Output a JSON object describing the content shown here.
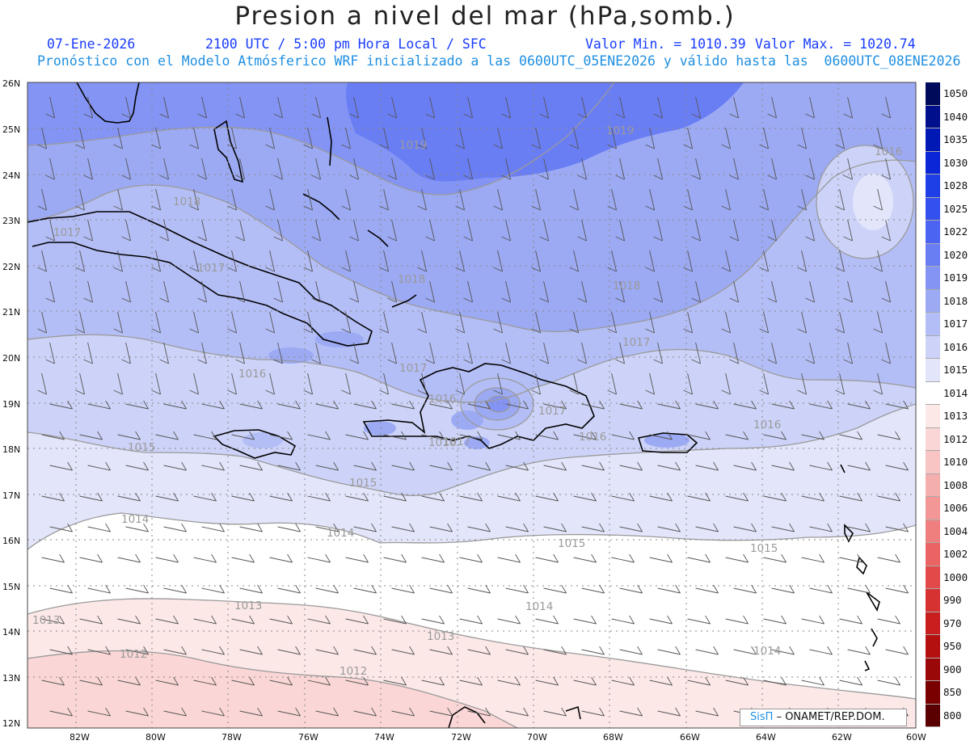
{
  "header": {
    "title": "Presion a nivel del mar (hPa,somb.)",
    "date": "07-Ene-2026",
    "time": "2100 UTC / 5:00 pm Hora Local / SFC",
    "min": "Valor Min. = 1010.39",
    "max": "Valor Max. = 1020.74",
    "forecast": "Pronóstico con el Modelo Atmósferico WRF inicializado a las 0600UTC_05ENE2026 y válido hasta las  0600UTC_08ENE2026"
  },
  "axes": {
    "lon_labels": [
      "82W",
      "80W",
      "78W",
      "76W",
      "74W",
      "72W",
      "70W",
      "68W",
      "66W",
      "64W",
      "62W",
      "60W"
    ],
    "lat_labels": [
      "26N",
      "25N",
      "24N",
      "23N",
      "22N",
      "21N",
      "20N",
      "19N",
      "18N",
      "17N",
      "16N",
      "15N",
      "14N",
      "13N",
      "12N"
    ]
  },
  "colorbar": {
    "levels": [
      "1050",
      "1040",
      "1035",
      "1030",
      "1028",
      "1025",
      "1022",
      "1020",
      "1019",
      "1018",
      "1017",
      "1016",
      "1015",
      "1014",
      "1013",
      "1012",
      "1010",
      "1008",
      "1006",
      "1004",
      "1002",
      "1000",
      "990",
      "970",
      "950",
      "900",
      "850",
      "800"
    ],
    "colors": [
      "#000a5a",
      "#00108c",
      "#0018b4",
      "#0a26d6",
      "#1e3ee6",
      "#3450ee",
      "#4c64f2",
      "#6a7ef4",
      "#8494f4",
      "#9caaf4",
      "#b4bef6",
      "#cdd3f8",
      "#e3e6fb",
      "#ffffff",
      "#fde8e8",
      "#fbd6d6",
      "#f8c4c4",
      "#f5aeae",
      "#f29696",
      "#ef7e7e",
      "#ea6464",
      "#e24a4a",
      "#d63232",
      "#c81e1e",
      "#b41010",
      "#9a0808",
      "#7a0000",
      "#5a0000"
    ]
  },
  "contour_labels": [
    {
      "text": "1019"
    },
    {
      "text": "1019"
    },
    {
      "text": "1016"
    },
    {
      "text": "1018"
    },
    {
      "text": "1017"
    },
    {
      "text": "1018"
    },
    {
      "text": "1017"
    },
    {
      "text": "1018"
    },
    {
      "text": "1017"
    },
    {
      "text": "1016"
    },
    {
      "text": "1017"
    },
    {
      "text": "1016"
    },
    {
      "text": "1017"
    },
    {
      "text": "1016"
    },
    {
      "text": "1016"
    },
    {
      "text": "1015"
    },
    {
      "text": "1015"
    },
    {
      "text": "1014"
    },
    {
      "text": "1014"
    },
    {
      "text": "1015"
    },
    {
      "text": "1015"
    },
    {
      "text": "1013"
    },
    {
      "text": "1013"
    },
    {
      "text": "1014"
    },
    {
      "text": "1013"
    },
    {
      "text": "1014"
    },
    {
      "text": "1012"
    },
    {
      "text": "1012"
    },
    {
      "text": "1016"
    },
    {
      "text": "1017"
    }
  ],
  "credit": {
    "logo": "SisΠ",
    "text": "– ONAMET/REP.DOM."
  }
}
